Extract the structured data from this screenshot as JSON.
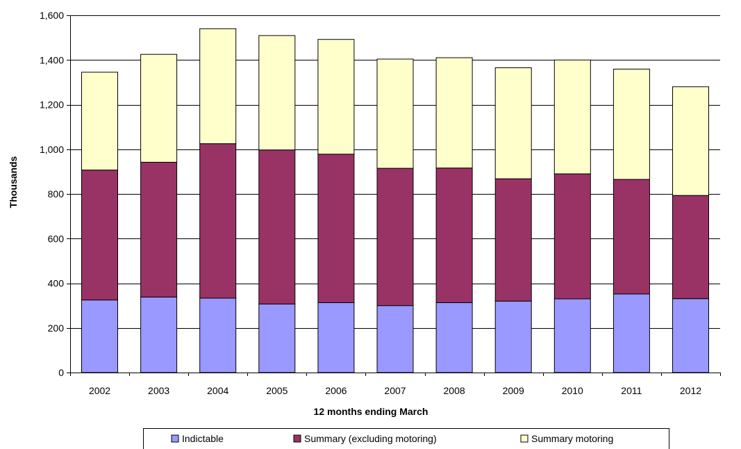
{
  "chart_data": {
    "type": "bar",
    "stacked": true,
    "title": "",
    "xlabel": "12 months ending March",
    "ylabel": "Thousands",
    "ylim": [
      0,
      1600
    ],
    "yticks": [
      0,
      200,
      400,
      600,
      800,
      1000,
      1200,
      1400,
      1600
    ],
    "ytick_labels": [
      "0",
      "200",
      "400",
      "600",
      "800",
      "1,000",
      "1,200",
      "1,400",
      "1,600"
    ],
    "grid": true,
    "legend_position": "bottom",
    "categories": [
      "2002",
      "2003",
      "2004",
      "2005",
      "2006",
      "2007",
      "2008",
      "2009",
      "2010",
      "2011",
      "2012"
    ],
    "series": [
      {
        "name": "Indictable",
        "color": "#9999FF",
        "values": [
          325,
          338,
          333,
          307,
          313,
          300,
          313,
          320,
          330,
          352,
          331
        ]
      },
      {
        "name": "Summary (excluding motoring)",
        "color": "#993366",
        "values": [
          582,
          604,
          692,
          690,
          665,
          615,
          603,
          548,
          560,
          513,
          462
        ]
      },
      {
        "name": "Summary motoring",
        "color": "#FFFFCC",
        "values": [
          438,
          483,
          515,
          512,
          514,
          489,
          494,
          497,
          510,
          494,
          487
        ]
      }
    ]
  }
}
